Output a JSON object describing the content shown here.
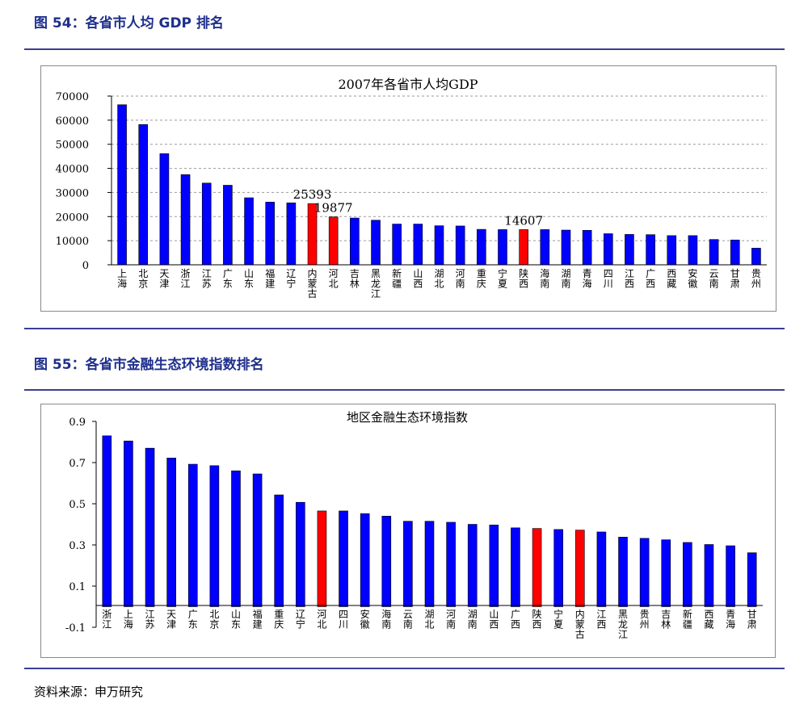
{
  "figure1": {
    "caption": "图 54：各省市人均 GDP 排名",
    "chart_data": {
      "type": "bar",
      "title": "2007年各省市人均GDP",
      "xlabel": "",
      "ylabel": "",
      "ylim": [
        0,
        70000
      ],
      "yticks": [
        0,
        10000,
        20000,
        30000,
        40000,
        50000,
        60000,
        70000
      ],
      "grid": true,
      "categories": [
        "上海",
        "北京",
        "天津",
        "浙江",
        "江苏",
        "广东",
        "山东",
        "福建",
        "辽宁",
        "内蒙古",
        "河北",
        "吉林",
        "黑龙江",
        "新疆",
        "山西",
        "湖北",
        "河南",
        "重庆",
        "宁夏",
        "陕西",
        "海南",
        "湖南",
        "青海",
        "四川",
        "江西",
        "广西",
        "西藏",
        "安徽",
        "云南",
        "甘肃",
        "贵州"
      ],
      "values": [
        66400,
        58200,
        46100,
        37400,
        33900,
        33000,
        27800,
        26000,
        25700,
        25393,
        19877,
        19400,
        18500,
        16900,
        16900,
        16200,
        16100,
        14700,
        14600,
        14607,
        14600,
        14400,
        14300,
        12900,
        12600,
        12500,
        12100,
        12100,
        10500,
        10300,
        6900
      ],
      "highlight": [
        "内蒙古",
        "河北",
        "陕西"
      ],
      "data_labels": [
        {
          "category": "内蒙古",
          "text": "25393"
        },
        {
          "category": "河北",
          "text": "19877"
        },
        {
          "category": "陕西",
          "text": "14607"
        }
      ],
      "colors": {
        "bar": "#0000ff",
        "highlight": "#ff0000",
        "grid": "#9a9a9a",
        "axis": "#000000"
      }
    }
  },
  "figure2": {
    "caption": "图 55：各省市金融生态环境指数排名",
    "chart_data": {
      "type": "bar",
      "title": "地区金融生态环境指数",
      "xlabel": "",
      "ylabel": "",
      "ylim": [
        -0.1,
        0.9
      ],
      "yticks": [
        -0.1,
        0.1,
        0.3,
        0.5,
        0.7,
        0.9
      ],
      "ytick_labels": [
        "-0.1",
        "0.1",
        "0.3",
        "0.5",
        "0.7",
        "0.9"
      ],
      "grid": false,
      "categories": [
        "浙江",
        "上海",
        "江苏",
        "天津",
        "广东",
        "北京",
        "山东",
        "福建",
        "重庆",
        "辽宁",
        "河北",
        "四川",
        "安徽",
        "海南",
        "云南",
        "湖北",
        "河南",
        "湖南",
        "山西",
        "广西",
        "陕西",
        "宁夏",
        "内蒙古",
        "江西",
        "黑龙江",
        "贵州",
        "吉林",
        "新疆",
        "西藏",
        "青海",
        "甘肃"
      ],
      "values": [
        0.83,
        0.805,
        0.77,
        0.722,
        0.692,
        0.685,
        0.66,
        0.645,
        0.543,
        0.507,
        0.465,
        0.465,
        0.452,
        0.44,
        0.415,
        0.415,
        0.41,
        0.4,
        0.397,
        0.383,
        0.38,
        0.375,
        0.372,
        0.363,
        0.338,
        0.332,
        0.325,
        0.312,
        0.302,
        0.296,
        0.262
      ],
      "highlight": [
        "河北",
        "陕西",
        "内蒙古"
      ],
      "colors": {
        "bar": "#0000ff",
        "highlight": "#ff0000",
        "axis": "#000000"
      }
    }
  },
  "source": "资料来源：申万研究"
}
